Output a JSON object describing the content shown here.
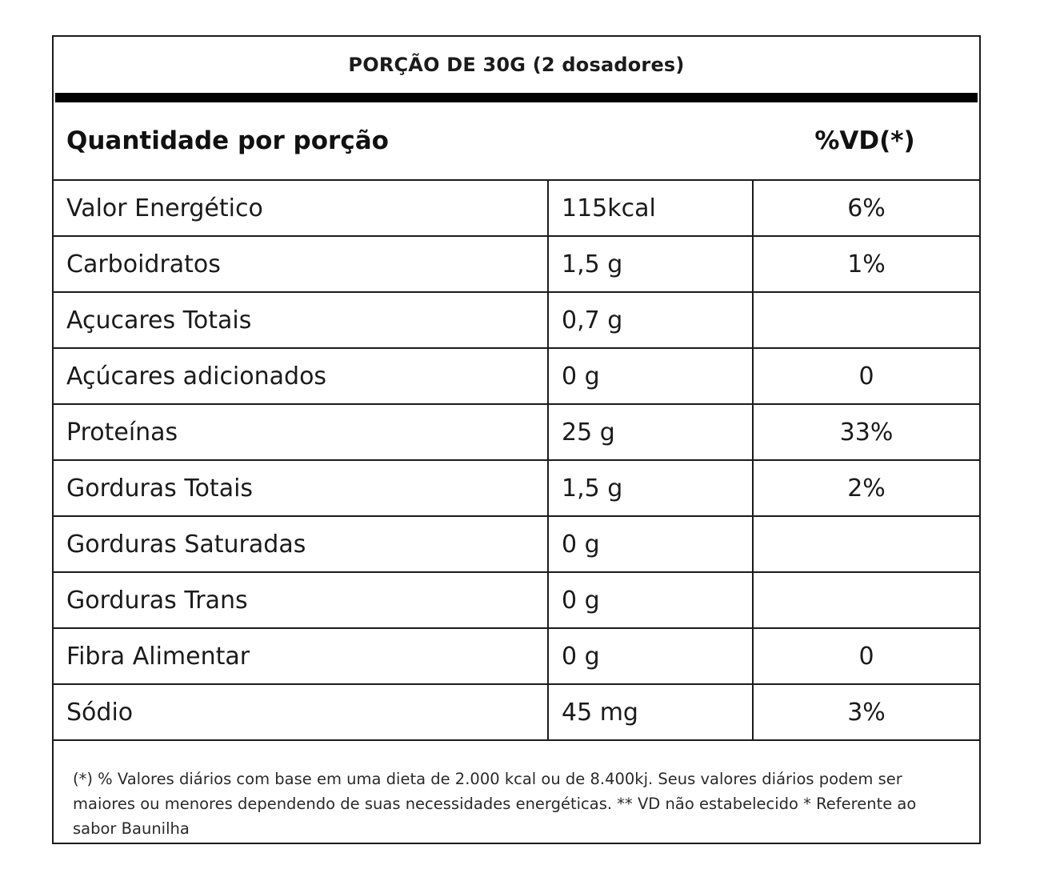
{
  "portion_title": "PORÇÃO DE 30G (2 dosadores)",
  "header": {
    "label": "Quantidade por porção",
    "vd_label": "%VD(*)"
  },
  "rows": [
    {
      "name": "Valor Energético",
      "amount": "115kcal",
      "vd": "6%"
    },
    {
      "name": "Carboidratos",
      "amount": "1,5 g",
      "vd": "1%"
    },
    {
      "name": "Açucares Totais",
      "amount": "0,7 g",
      "vd": ""
    },
    {
      "name": "Açúcares adicionados",
      "amount": "0 g",
      "vd": "0"
    },
    {
      "name": "Proteínas",
      "amount": "25 g",
      "vd": "33%"
    },
    {
      "name": "Gorduras Totais",
      "amount": "1,5 g",
      "vd": "2%"
    },
    {
      "name": "Gorduras Saturadas",
      "amount": "0 g",
      "vd": ""
    },
    {
      "name": "Gorduras Trans",
      "amount": "0 g",
      "vd": ""
    },
    {
      "name": "Fibra Alimentar",
      "amount": "0 g",
      "vd": "0"
    },
    {
      "name": "Sódio",
      "amount": "45 mg",
      "vd": "3%"
    }
  ],
  "footnote": "(*) % Valores diários com base em uma dieta de 2.000 kcal ou de 8.400kj. Seus valores diários podem ser maiores ou menores dependendo de suas necessidades energéticas. ** VD não estabelecido * Referente ao sabor Baunilha"
}
